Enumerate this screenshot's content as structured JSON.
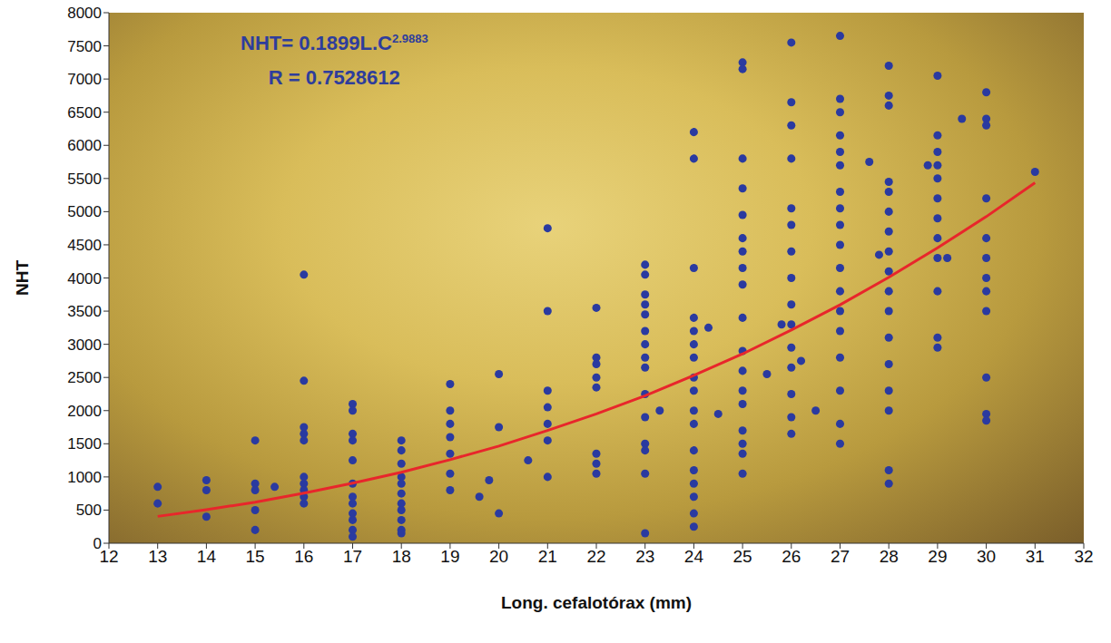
{
  "chart_data": {
    "type": "scatter",
    "xlabel": "Long. cefalotórax (mm)",
    "ylabel": "NHT",
    "annotations": [
      {
        "text": "NHT= 0.1899L.C",
        "superscript": "2.9883"
      },
      {
        "text": "R = 0.7528612"
      }
    ],
    "xlim": [
      12,
      32
    ],
    "xticks": [
      12,
      13,
      14,
      15,
      16,
      17,
      18,
      19,
      20,
      21,
      22,
      23,
      24,
      25,
      26,
      27,
      28,
      29,
      30,
      31,
      32
    ],
    "ylim": [
      0,
      8000
    ],
    "yticks": [
      0,
      500,
      1000,
      1500,
      2000,
      2500,
      3000,
      3500,
      4000,
      4500,
      5000,
      5500,
      6000,
      6500,
      7000,
      7500,
      8000
    ],
    "grid": false,
    "series": [
      {
        "type": "scatter",
        "color": "#2a3aa0",
        "marker": "circle",
        "x": [
          13,
          13,
          14,
          14,
          14,
          15,
          15,
          15,
          15,
          15,
          15.4,
          16,
          16,
          16,
          16,
          16,
          16,
          16,
          16,
          16,
          16,
          17,
          17,
          17,
          17,
          17,
          17,
          17,
          17,
          17,
          17,
          17,
          17,
          18,
          18,
          18,
          18,
          18,
          18,
          18,
          18,
          18,
          18,
          18,
          19,
          19,
          19,
          19,
          19,
          19,
          19,
          19.6,
          19.8,
          20,
          20,
          20,
          20.6,
          21,
          21,
          21,
          21,
          21,
          21,
          21,
          22,
          22,
          22,
          22,
          22,
          22,
          22,
          22,
          23,
          23,
          23,
          23,
          23,
          23,
          23,
          23,
          23,
          23,
          23,
          23,
          23,
          23,
          23,
          23.3,
          24,
          24,
          24,
          24,
          24,
          24,
          24,
          24,
          24,
          24,
          24,
          24,
          24,
          24,
          24,
          24,
          24,
          24.3,
          24.5,
          25,
          25,
          25,
          25,
          25,
          25,
          25,
          25,
          25,
          25,
          25,
          25,
          25,
          25,
          25,
          25,
          25,
          25,
          25.5,
          25.8,
          26,
          26,
          26,
          26,
          26,
          26,
          26,
          26,
          26,
          26,
          26,
          26,
          26,
          26,
          26,
          26.2,
          26.5,
          27,
          27,
          27,
          27,
          27,
          27,
          27,
          27,
          27,
          27,
          27,
          27,
          27,
          27,
          27,
          27,
          27,
          27,
          27.6,
          28,
          28,
          28,
          28,
          28,
          28,
          28,
          28,
          28,
          28,
          28,
          28,
          28,
          28,
          28,
          28,
          28,
          27.8,
          29,
          29,
          29,
          29,
          29,
          29,
          29,
          29,
          29,
          29,
          29,
          29,
          28.8,
          29.2,
          29.5,
          30,
          30,
          30,
          30,
          30,
          30,
          30,
          30,
          30,
          30,
          30,
          30,
          31
        ],
        "values": [
          850,
          600,
          950,
          800,
          400,
          1550,
          900,
          800,
          500,
          200,
          850,
          4050,
          2450,
          1750,
          1650,
          1550,
          1000,
          900,
          800,
          700,
          600,
          2100,
          2000,
          1650,
          1550,
          1250,
          900,
          700,
          600,
          450,
          350,
          200,
          100,
          1550,
          1400,
          1200,
          1000,
          900,
          750,
          600,
          500,
          350,
          200,
          150,
          2400,
          2000,
          1800,
          1600,
          1350,
          1050,
          800,
          700,
          950,
          2550,
          1750,
          450,
          1250,
          4750,
          3500,
          2300,
          2050,
          1800,
          1550,
          1000,
          3550,
          2800,
          2700,
          2500,
          2350,
          1350,
          1200,
          1050,
          4200,
          4050,
          3750,
          3600,
          3450,
          3200,
          3000,
          2800,
          2650,
          2250,
          1900,
          1500,
          1400,
          1050,
          150,
          2000,
          6200,
          5800,
          4150,
          3400,
          3200,
          3000,
          2800,
          2500,
          2300,
          2000,
          1800,
          1400,
          1100,
          900,
          700,
          450,
          250,
          3250,
          1950,
          7250,
          7150,
          5800,
          5350,
          4950,
          4600,
          4400,
          4150,
          3900,
          3400,
          2900,
          2600,
          2300,
          2100,
          1700,
          1500,
          1350,
          1050,
          2550,
          3300,
          7550,
          6650,
          6300,
          5800,
          5050,
          4800,
          4400,
          4000,
          3600,
          3300,
          2950,
          2650,
          2250,
          1900,
          1650,
          2750,
          2000,
          7650,
          6700,
          6500,
          6150,
          5900,
          5700,
          5300,
          5050,
          4800,
          4500,
          4150,
          3800,
          3500,
          3200,
          2800,
          2300,
          1800,
          1500,
          5750,
          7200,
          6750,
          6600,
          5450,
          5300,
          5000,
          4700,
          4400,
          4100,
          3800,
          3500,
          3100,
          2700,
          2300,
          2000,
          1100,
          900,
          4350,
          7050,
          6150,
          5900,
          5700,
          5500,
          5200,
          4900,
          4600,
          4300,
          3800,
          3100,
          2950,
          5700,
          4300,
          6400,
          6800,
          6400,
          6300,
          5200,
          4600,
          4300,
          4000,
          3800,
          3500,
          2500,
          1950,
          1850,
          5600
        ]
      },
      {
        "type": "line",
        "color": "#e8262b",
        "line_style": "solid",
        "x": [
          13,
          14,
          15,
          16,
          17,
          18,
          19,
          20,
          21,
          22,
          23,
          24,
          25,
          26,
          27,
          28,
          29,
          30,
          31
        ],
        "values": [
          405,
          505,
          620,
          755,
          905,
          1070,
          1260,
          1465,
          1700,
          1950,
          2225,
          2530,
          2855,
          3215,
          3595,
          4010,
          4455,
          4925,
          5435
        ]
      }
    ]
  }
}
